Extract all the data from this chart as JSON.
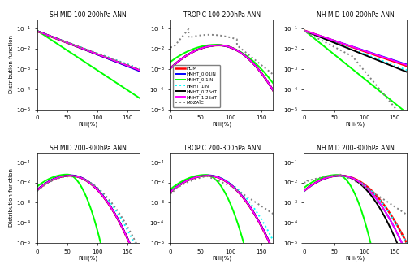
{
  "titles": [
    [
      "SH MID 100-200hPa ANN",
      "TROPIC 100-200hPa ANN",
      "NH MID 100-200hPa ANN"
    ],
    [
      "SH MID 200-300hPa ANN",
      "TROPIC 200-300hPa ANN",
      "NH MID 200-300hPa ANN"
    ]
  ],
  "xlabel": "RHi(%)",
  "ylabel": "Distribution function",
  "xlim": [
    0,
    170
  ],
  "ylim": [
    1e-05,
    0.3
  ],
  "xticks": [
    0,
    50,
    100,
    150
  ],
  "legend_labels": [
    "HOM",
    "HMHT_0.01IN",
    "HMHT_0.1IN",
    "HMHT_1IN",
    "HMHT_0.75dT",
    "HMHT_1.25dT",
    "MOZAIC"
  ],
  "colors": [
    "red",
    "blue",
    "lime",
    "cyan",
    "black",
    "magenta",
    "gray"
  ],
  "line_styles": [
    "-",
    "-",
    "-",
    ":",
    "-",
    "-",
    ":"
  ],
  "line_widths": [
    1.8,
    1.4,
    1.4,
    1.4,
    1.4,
    1.4,
    1.4
  ],
  "legend_panel": [
    0,
    1
  ]
}
